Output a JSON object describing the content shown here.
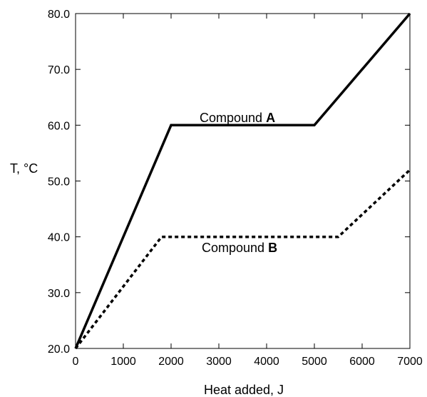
{
  "chart_data": {
    "type": "line",
    "title": "",
    "xlabel": "Heat added, J",
    "ylabel": "T, °C",
    "xlim": [
      0,
      7000
    ],
    "ylim": [
      20.0,
      80.0
    ],
    "xticks": [
      0,
      1000,
      2000,
      3000,
      4000,
      5000,
      6000,
      7000
    ],
    "yticks": [
      "20.0",
      "30.0",
      "40.0",
      "50.0",
      "60.0",
      "70.0",
      "80.0"
    ],
    "grid": false,
    "series": [
      {
        "name": "Compound A",
        "label_prefix": "Compound ",
        "label_bold": "A",
        "style": "solid",
        "color": "#000000",
        "points": [
          [
            0,
            20.0
          ],
          [
            2000,
            60.0
          ],
          [
            5000,
            60.0
          ],
          [
            7000,
            80.0
          ]
        ]
      },
      {
        "name": "Compound B",
        "label_prefix": "Compound ",
        "label_bold": "B",
        "style": "dotted",
        "color": "#000000",
        "points": [
          [
            0,
            20.0
          ],
          [
            1800,
            40.0
          ],
          [
            5500,
            40.0
          ],
          [
            7000,
            52.0
          ]
        ]
      }
    ]
  }
}
